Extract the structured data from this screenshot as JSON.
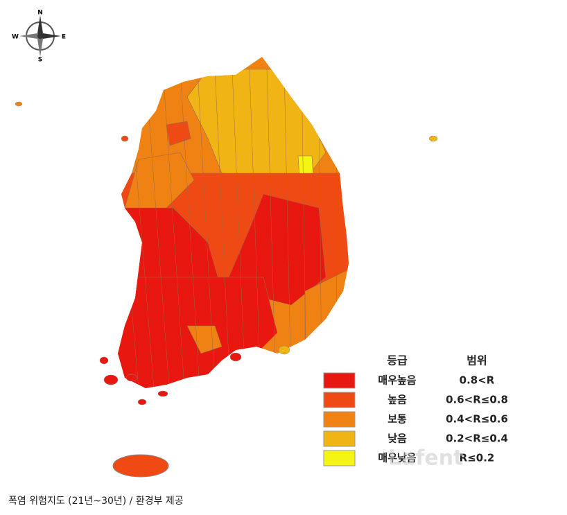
{
  "compass": {
    "north": "N",
    "south": "S",
    "west": "W",
    "east": "E"
  },
  "legend": {
    "headers": [
      "등급",
      "범위"
    ],
    "rows": [
      {
        "label": "매우높음",
        "range": "0.8<R",
        "color": "#e8170f"
      },
      {
        "label": "높음",
        "range": "0.6<R≤0.8",
        "color": "#f04a14"
      },
      {
        "label": "보통",
        "range": "0.4<R≤0.6",
        "color": "#f08214"
      },
      {
        "label": "낮음",
        "range": "0.2<R≤0.4",
        "color": "#f0b414"
      },
      {
        "label": "매우낮음",
        "range": "R≤0.2",
        "color": "#f5f514"
      }
    ]
  },
  "watermark": "Lafent",
  "caption": "폭염 위험지도 (21년~30년) / 환경부 제공"
}
